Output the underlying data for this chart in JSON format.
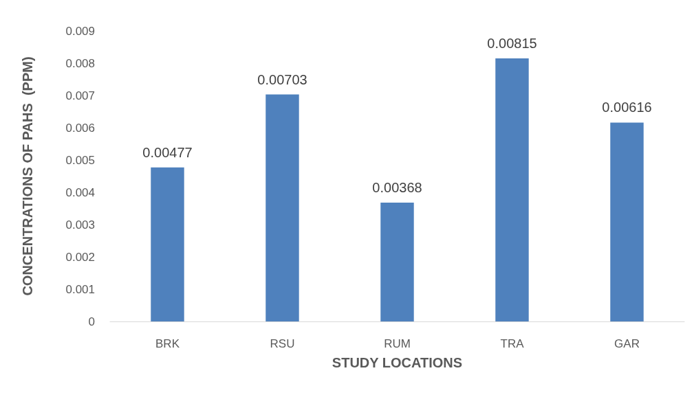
{
  "chart_data": {
    "type": "bar",
    "xlabel": "STUDY LOCATIONS",
    "ylabel": "CONCENTRATIONS OF PAHS  (PPM)",
    "categories": [
      "BRK",
      "RSU",
      "RUM",
      "TRA",
      "GAR"
    ],
    "values": [
      0.00477,
      0.00703,
      0.00368,
      0.00815,
      0.00616
    ],
    "color": "#4f81bd",
    "data_labels": true,
    "grid": false,
    "ylim": [
      0,
      0.009
    ],
    "yticks": [
      0,
      0.001,
      0.002,
      0.003,
      0.004,
      0.005,
      0.006,
      0.007,
      0.008,
      0.009
    ]
  }
}
